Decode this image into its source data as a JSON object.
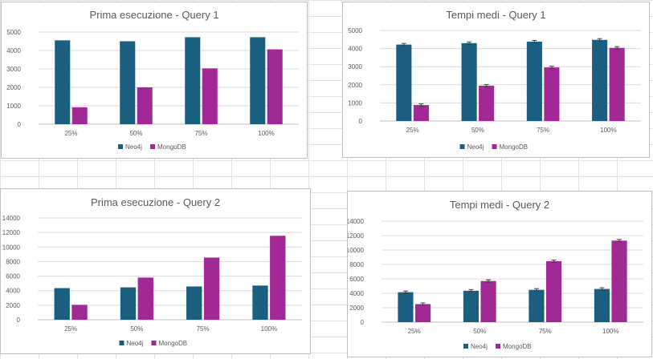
{
  "colors": {
    "neo4j": "#1a5f7f",
    "mongodb": "#a22896",
    "grid": "#d9d9d9",
    "axis": "#bfbfbf"
  },
  "chart_data": [
    {
      "type": "bar",
      "title": "Prima esecuzione - Query 1",
      "categories": [
        "25%",
        "50%",
        "75%",
        "100%"
      ],
      "series": [
        {
          "name": "Neo4j",
          "values": [
            4550,
            4500,
            4720,
            4720
          ]
        },
        {
          "name": "MongoDB",
          "values": [
            920,
            2000,
            3030,
            4060
          ]
        }
      ],
      "ylim": [
        0,
        5000
      ],
      "yticks": [
        0,
        1000,
        2000,
        3000,
        4000,
        5000
      ],
      "error_bars": false,
      "grid": true,
      "legend": "bottom"
    },
    {
      "type": "bar",
      "title": "Tempi medi - Query 1",
      "categories": [
        "25%",
        "50%",
        "75%",
        "100%"
      ],
      "series": [
        {
          "name": "Neo4j",
          "values": [
            4220,
            4300,
            4380,
            4480
          ]
        },
        {
          "name": "MongoDB",
          "values": [
            880,
            1950,
            2960,
            4040
          ]
        }
      ],
      "ylim": [
        0,
        5000
      ],
      "yticks": [
        0,
        1000,
        2000,
        3000,
        4000,
        5000
      ],
      "error_bars": true,
      "grid": true,
      "legend": "bottom"
    },
    {
      "type": "bar",
      "title": "Prima esecuzione - Query 2",
      "categories": [
        "25%",
        "50%",
        "75%",
        "100%"
      ],
      "series": [
        {
          "name": "Neo4j",
          "values": [
            4350,
            4450,
            4580,
            4700
          ]
        },
        {
          "name": "MongoDB",
          "values": [
            2050,
            5800,
            8550,
            11550
          ]
        }
      ],
      "ylim": [
        0,
        14000
      ],
      "yticks": [
        0,
        2000,
        4000,
        6000,
        8000,
        10000,
        12000,
        14000
      ],
      "error_bars": false,
      "grid": true,
      "legend": "bottom"
    },
    {
      "type": "bar",
      "title": "Tempi medi - Query 2",
      "categories": [
        "25%",
        "50%",
        "75%",
        "100%"
      ],
      "series": [
        {
          "name": "Neo4j",
          "values": [
            4150,
            4350,
            4480,
            4600
          ]
        },
        {
          "name": "MongoDB",
          "values": [
            2500,
            5700,
            8450,
            11300
          ]
        }
      ],
      "ylim": [
        0,
        14000
      ],
      "yticks": [
        0,
        2000,
        4000,
        6000,
        8000,
        10000,
        12000,
        14000
      ],
      "error_bars": true,
      "grid": true,
      "legend": "bottom"
    }
  ]
}
